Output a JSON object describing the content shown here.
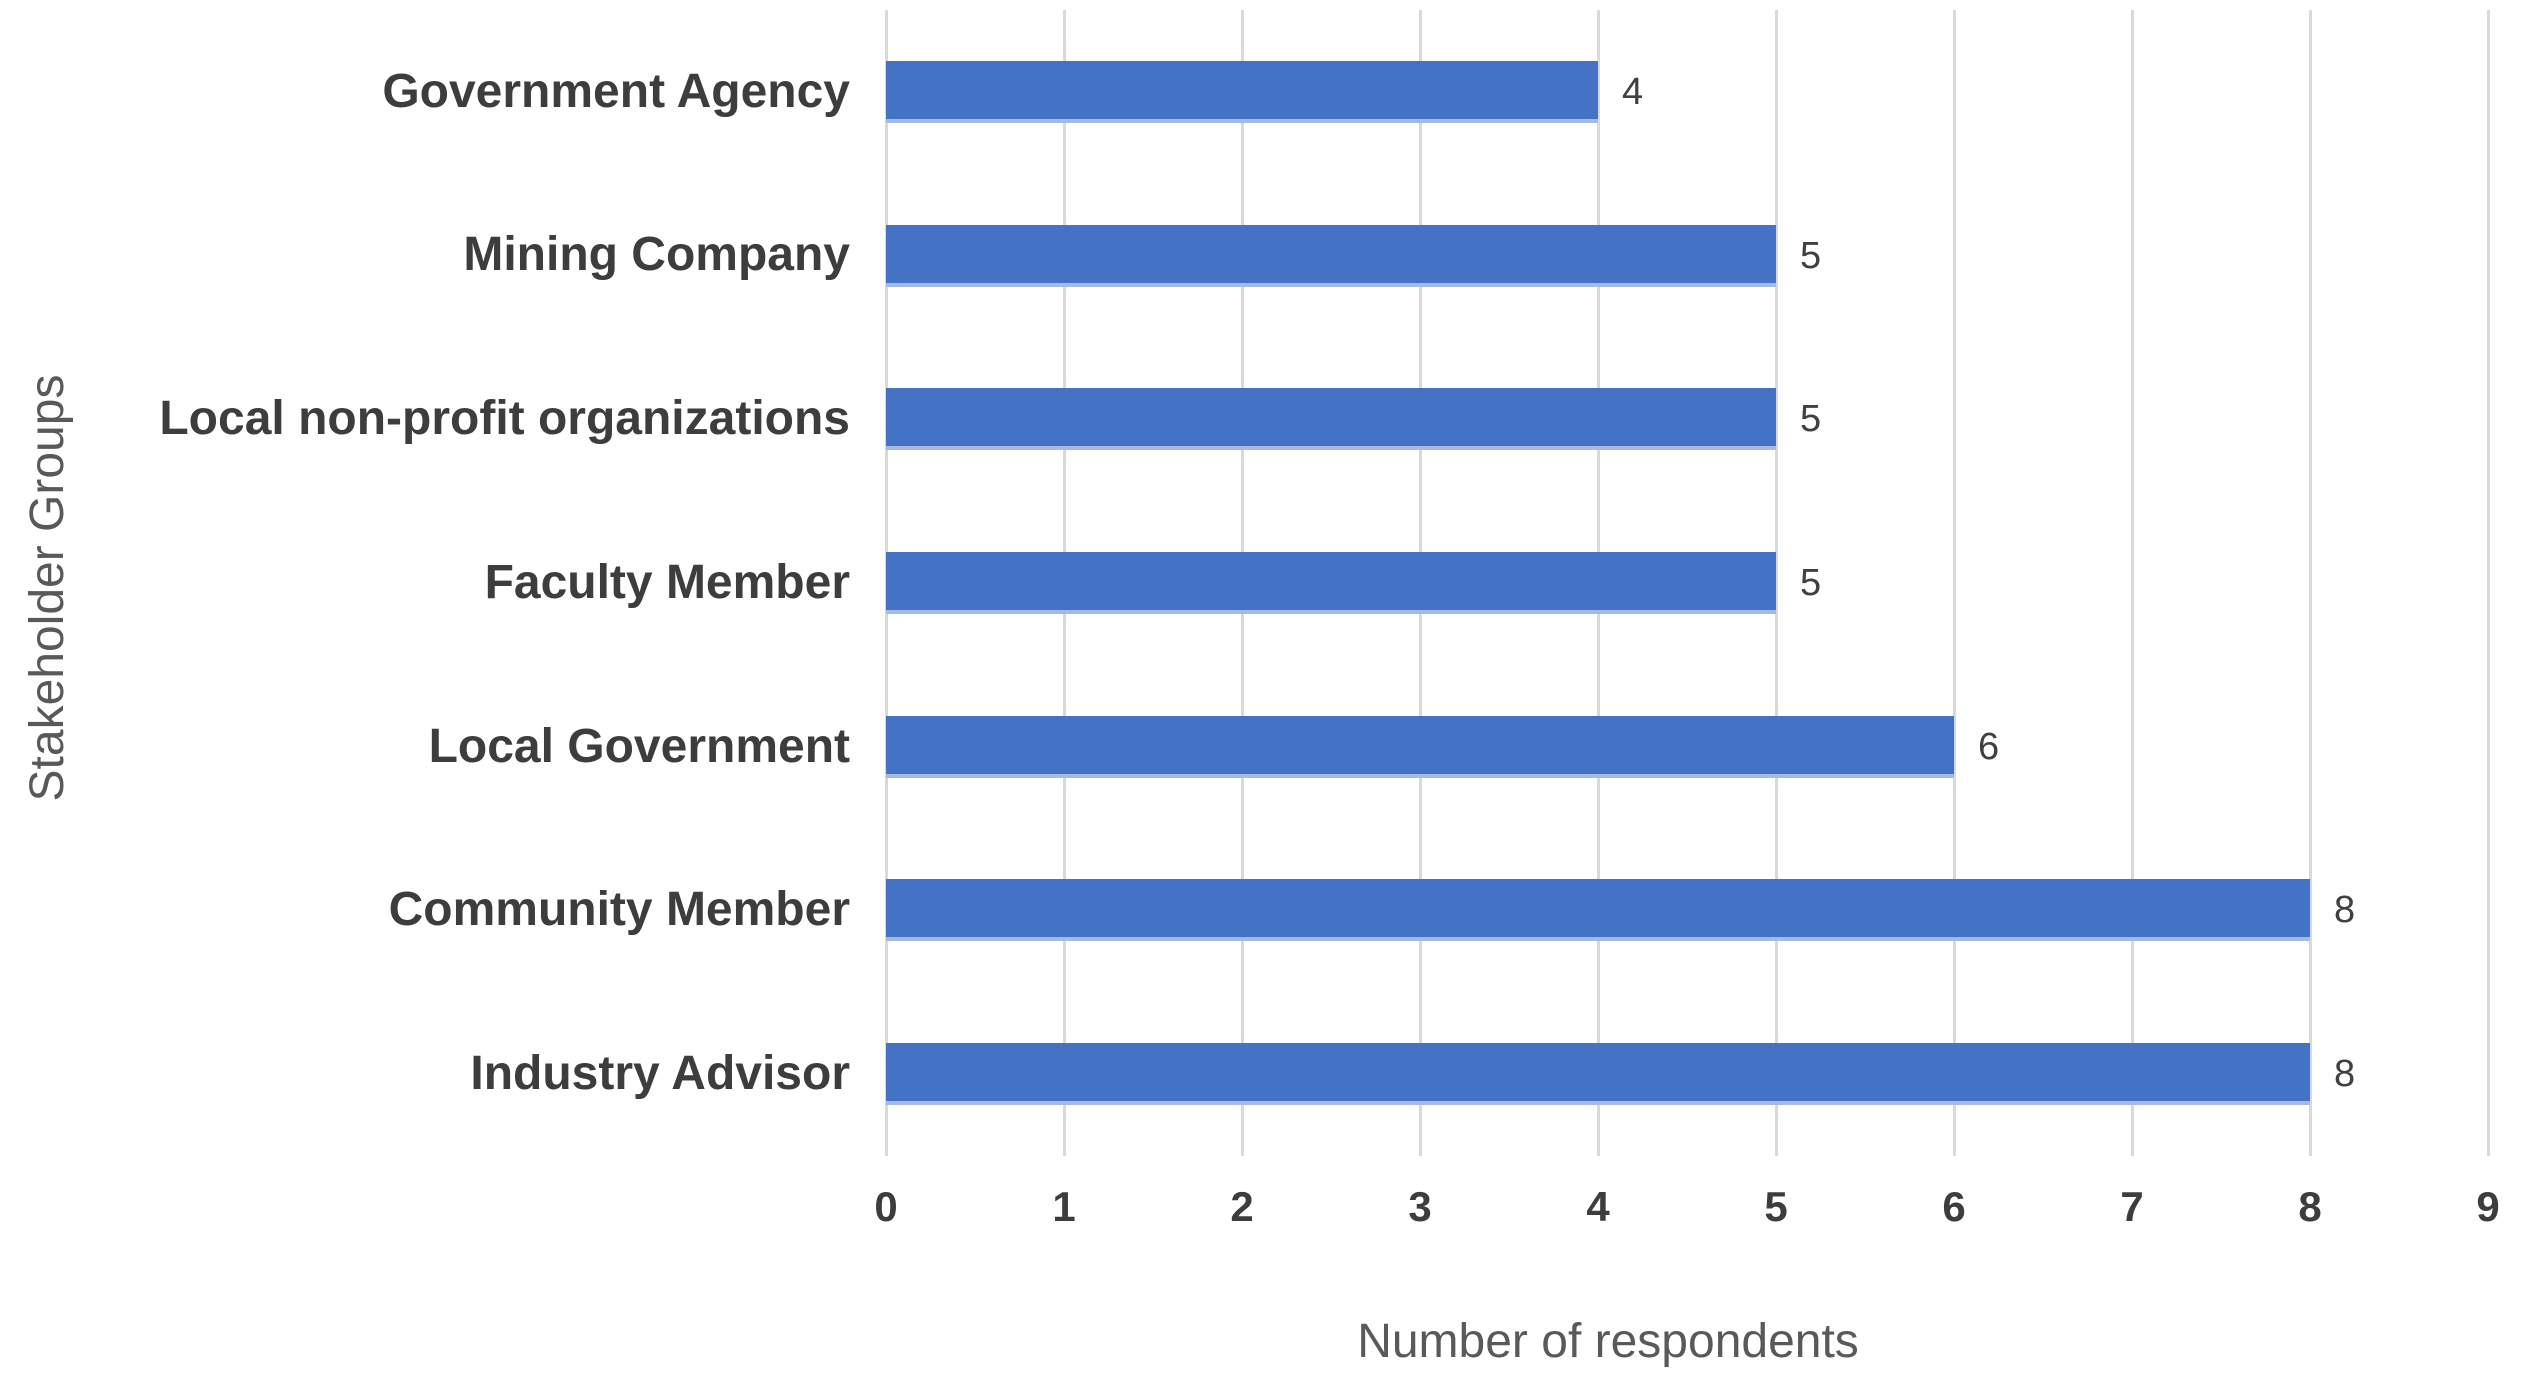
{
  "chart_data": {
    "type": "bar",
    "orientation": "horizontal",
    "title": "",
    "categories": [
      "Government Agency",
      "Mining Company",
      "Local non-profit organizations",
      "Faculty Member",
      "Local Government",
      "Community Member",
      "Industry Advisor"
    ],
    "values": [
      4,
      5,
      5,
      5,
      6,
      8,
      8
    ],
    "data_labels": [
      "4",
      "5",
      "5",
      "5",
      "6",
      "8",
      "8"
    ],
    "xlabel": "Number of respondents",
    "ylabel": "Stakeholder Groups",
    "xlim": [
      0,
      9
    ],
    "xticks": [
      "0",
      "1",
      "2",
      "3",
      "4",
      "5",
      "6",
      "7",
      "8",
      "9"
    ],
    "grid": true,
    "legend": false,
    "colors": {
      "bar_fill": "#4472c4",
      "bar_bottom_edge": "#a6b9e2",
      "gridline": "#d9d9d9",
      "category_label": "#3d3d3d",
      "tick_label": "#3d3d3d",
      "data_label": "#404040",
      "axis_title": "#595959",
      "background": "#ffffff"
    }
  }
}
